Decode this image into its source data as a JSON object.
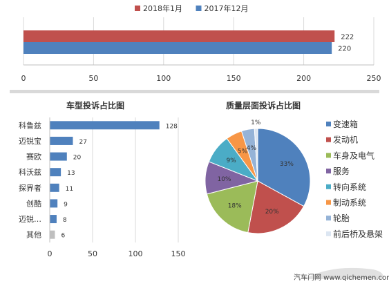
{
  "chart_data": [
    {
      "type": "bar",
      "orientation": "horizontal",
      "legend_position": "top",
      "series": [
        {
          "name": "2018年1月",
          "color": "#C0504D",
          "values": [
            222
          ]
        },
        {
          "name": "2017年12月",
          "color": "#4F81BD",
          "values": [
            220
          ]
        }
      ],
      "xlim": [
        0,
        250
      ],
      "xticks": [
        "0",
        "50",
        "100",
        "150",
        "200",
        "250"
      ],
      "grid": true
    },
    {
      "type": "bar",
      "orientation": "horizontal",
      "title": "车型投诉占比图",
      "categories": [
        "科鲁兹",
        "迈锐宝",
        "赛欧",
        "科沃兹",
        "探界者",
        "创酷",
        "迈锐…",
        "其他"
      ],
      "values": [
        128,
        27,
        20,
        13,
        11,
        9,
        8,
        6
      ],
      "colors": [
        "#4F81BD",
        "#4F81BD",
        "#4F81BD",
        "#4F81BD",
        "#4F81BD",
        "#4F81BD",
        "#4F81BD",
        "#BFBFBF"
      ],
      "xlim": [
        0,
        150
      ],
      "xticks": [
        "0",
        "50",
        "100",
        "150"
      ],
      "grid": true
    },
    {
      "type": "pie",
      "title": "质量层面投诉占比图",
      "legend_position": "right",
      "slices": [
        {
          "label": "变速箱",
          "value": 33,
          "text": "33%",
          "color": "#4F81BD"
        },
        {
          "label": "发动机",
          "value": 20,
          "text": "20%",
          "color": "#C0504D"
        },
        {
          "label": "车身及电气",
          "value": 18,
          "text": "18%",
          "color": "#9BBB59"
        },
        {
          "label": "服务",
          "value": 10,
          "text": "10%",
          "color": "#8064A2"
        },
        {
          "label": "转向系统",
          "value": 9,
          "text": "9%",
          "color": "#4BACC6"
        },
        {
          "label": "制动系统",
          "value": 5,
          "text": "5%",
          "color": "#F79646"
        },
        {
          "label": "轮胎",
          "value": 4,
          "text": "4%",
          "color": "#95B3D7"
        },
        {
          "label": "前后桥及悬架",
          "value": 1,
          "text": "1%",
          "color": "#DCE6F2"
        }
      ]
    }
  ],
  "watermark": "汽车门网 www.qichemen.com"
}
